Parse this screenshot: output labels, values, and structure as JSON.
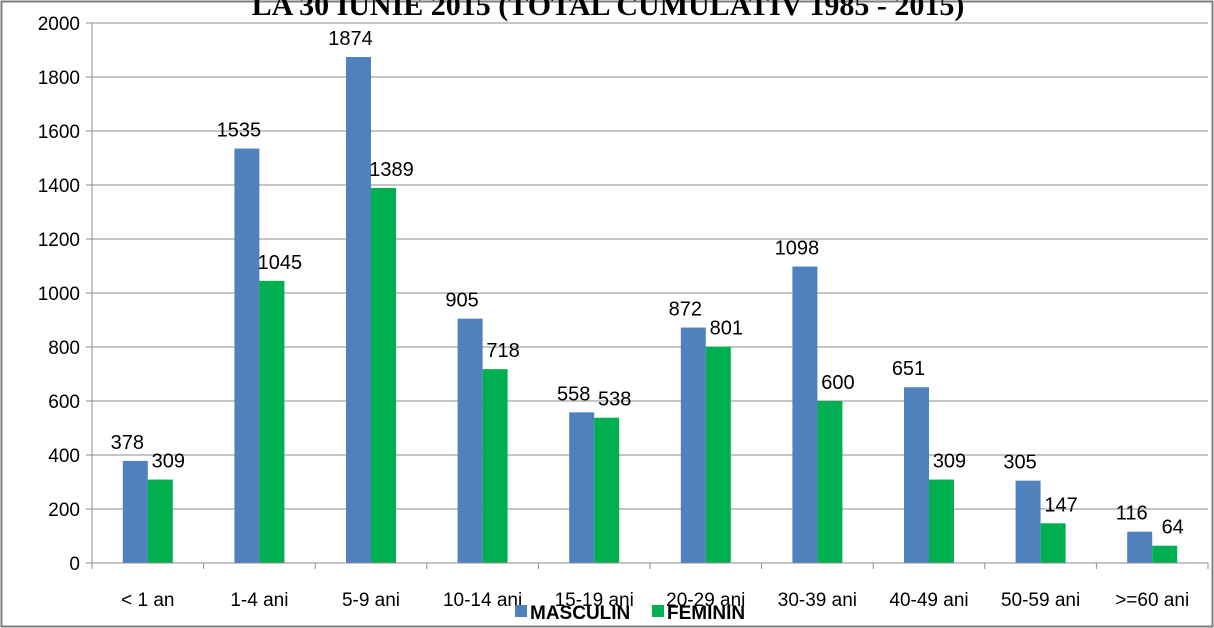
{
  "chart_data": {
    "type": "bar",
    "title": "LA 30 IUNIE 2015 (TOTAL CUMULATIV 1985 - 2015)",
    "xlabel": "",
    "ylabel": "",
    "ylim": [
      0,
      2000
    ],
    "yticks": [
      0,
      200,
      400,
      600,
      800,
      1000,
      1200,
      1400,
      1600,
      1800,
      2000
    ],
    "grid": true,
    "legend_position": "bottom",
    "categories": [
      "< 1 an",
      "1-4 ani",
      "5-9 ani",
      "10-14 ani",
      "15-19 ani",
      "20-29 ani",
      "30-39 ani",
      "40-49 ani",
      "50-59 ani",
      ">=60 ani"
    ],
    "series": [
      {
        "name": "MASCULIN",
        "color": "#4F81BD",
        "values": [
          378,
          1535,
          1874,
          905,
          558,
          872,
          1098,
          651,
          305,
          116
        ]
      },
      {
        "name": "FEMININ",
        "color": "#00B050",
        "values": [
          309,
          1045,
          1389,
          718,
          538,
          801,
          600,
          309,
          147,
          64
        ]
      }
    ]
  }
}
